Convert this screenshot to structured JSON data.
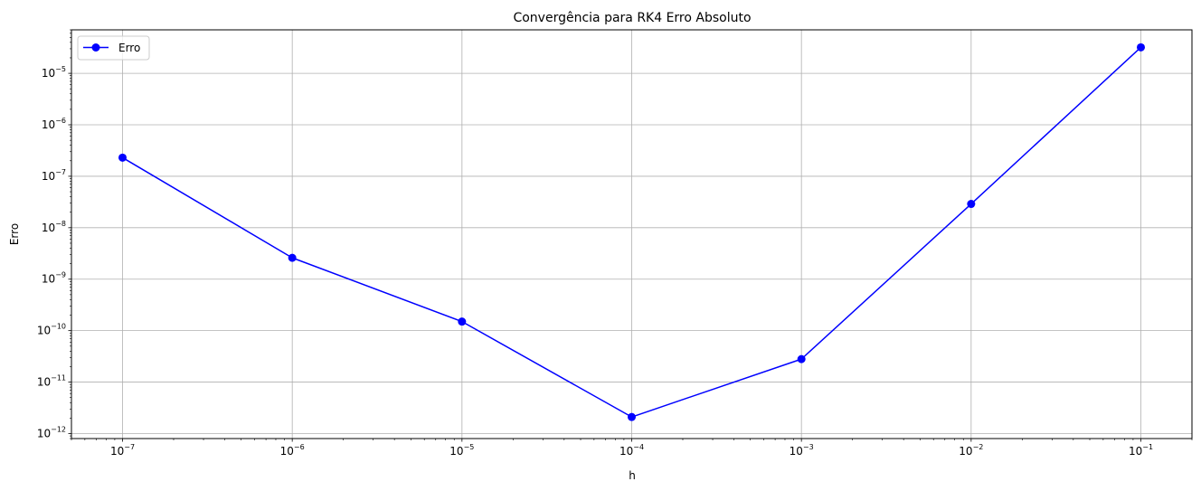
{
  "chart_data": {
    "type": "line",
    "title": "Convergência para RK4 Erro Absoluto",
    "xlabel": "h",
    "ylabel": "Erro",
    "xscale": "log",
    "yscale": "log",
    "xlim": [
      5e-08,
      0.2
    ],
    "ylim": [
      8e-13,
      7e-05
    ],
    "grid": true,
    "legend_position": "top-left",
    "x_ticks": [
      {
        "value": 1e-07,
        "base": "10",
        "exp": "−7"
      },
      {
        "value": 1e-06,
        "base": "10",
        "exp": "−6"
      },
      {
        "value": 1e-05,
        "base": "10",
        "exp": "−5"
      },
      {
        "value": 0.0001,
        "base": "10",
        "exp": "−4"
      },
      {
        "value": 0.001,
        "base": "10",
        "exp": "−3"
      },
      {
        "value": 0.01,
        "base": "10",
        "exp": "−2"
      },
      {
        "value": 0.1,
        "base": "10",
        "exp": "−1"
      }
    ],
    "y_ticks": [
      {
        "value": 1e-12,
        "base": "10",
        "exp": "−12"
      },
      {
        "value": 1e-11,
        "base": "10",
        "exp": "−11"
      },
      {
        "value": 1e-10,
        "base": "10",
        "exp": "−10"
      },
      {
        "value": 1e-09,
        "base": "10",
        "exp": "−9"
      },
      {
        "value": 1e-08,
        "base": "10",
        "exp": "−8"
      },
      {
        "value": 1e-07,
        "base": "10",
        "exp": "−7"
      },
      {
        "value": 1e-06,
        "base": "10",
        "exp": "−6"
      },
      {
        "value": 1e-05,
        "base": "10",
        "exp": "−5"
      }
    ],
    "series": [
      {
        "name": "Erro",
        "color": "#0000ff",
        "marker": "circle",
        "x": [
          1e-07,
          1e-06,
          1e-05,
          0.0001,
          0.001,
          0.01,
          0.1
        ],
        "y": [
          2.3e-07,
          2.6e-09,
          1.5e-10,
          2.1e-12,
          2.8e-11,
          2.9e-08,
          3.2e-05
        ]
      }
    ]
  }
}
